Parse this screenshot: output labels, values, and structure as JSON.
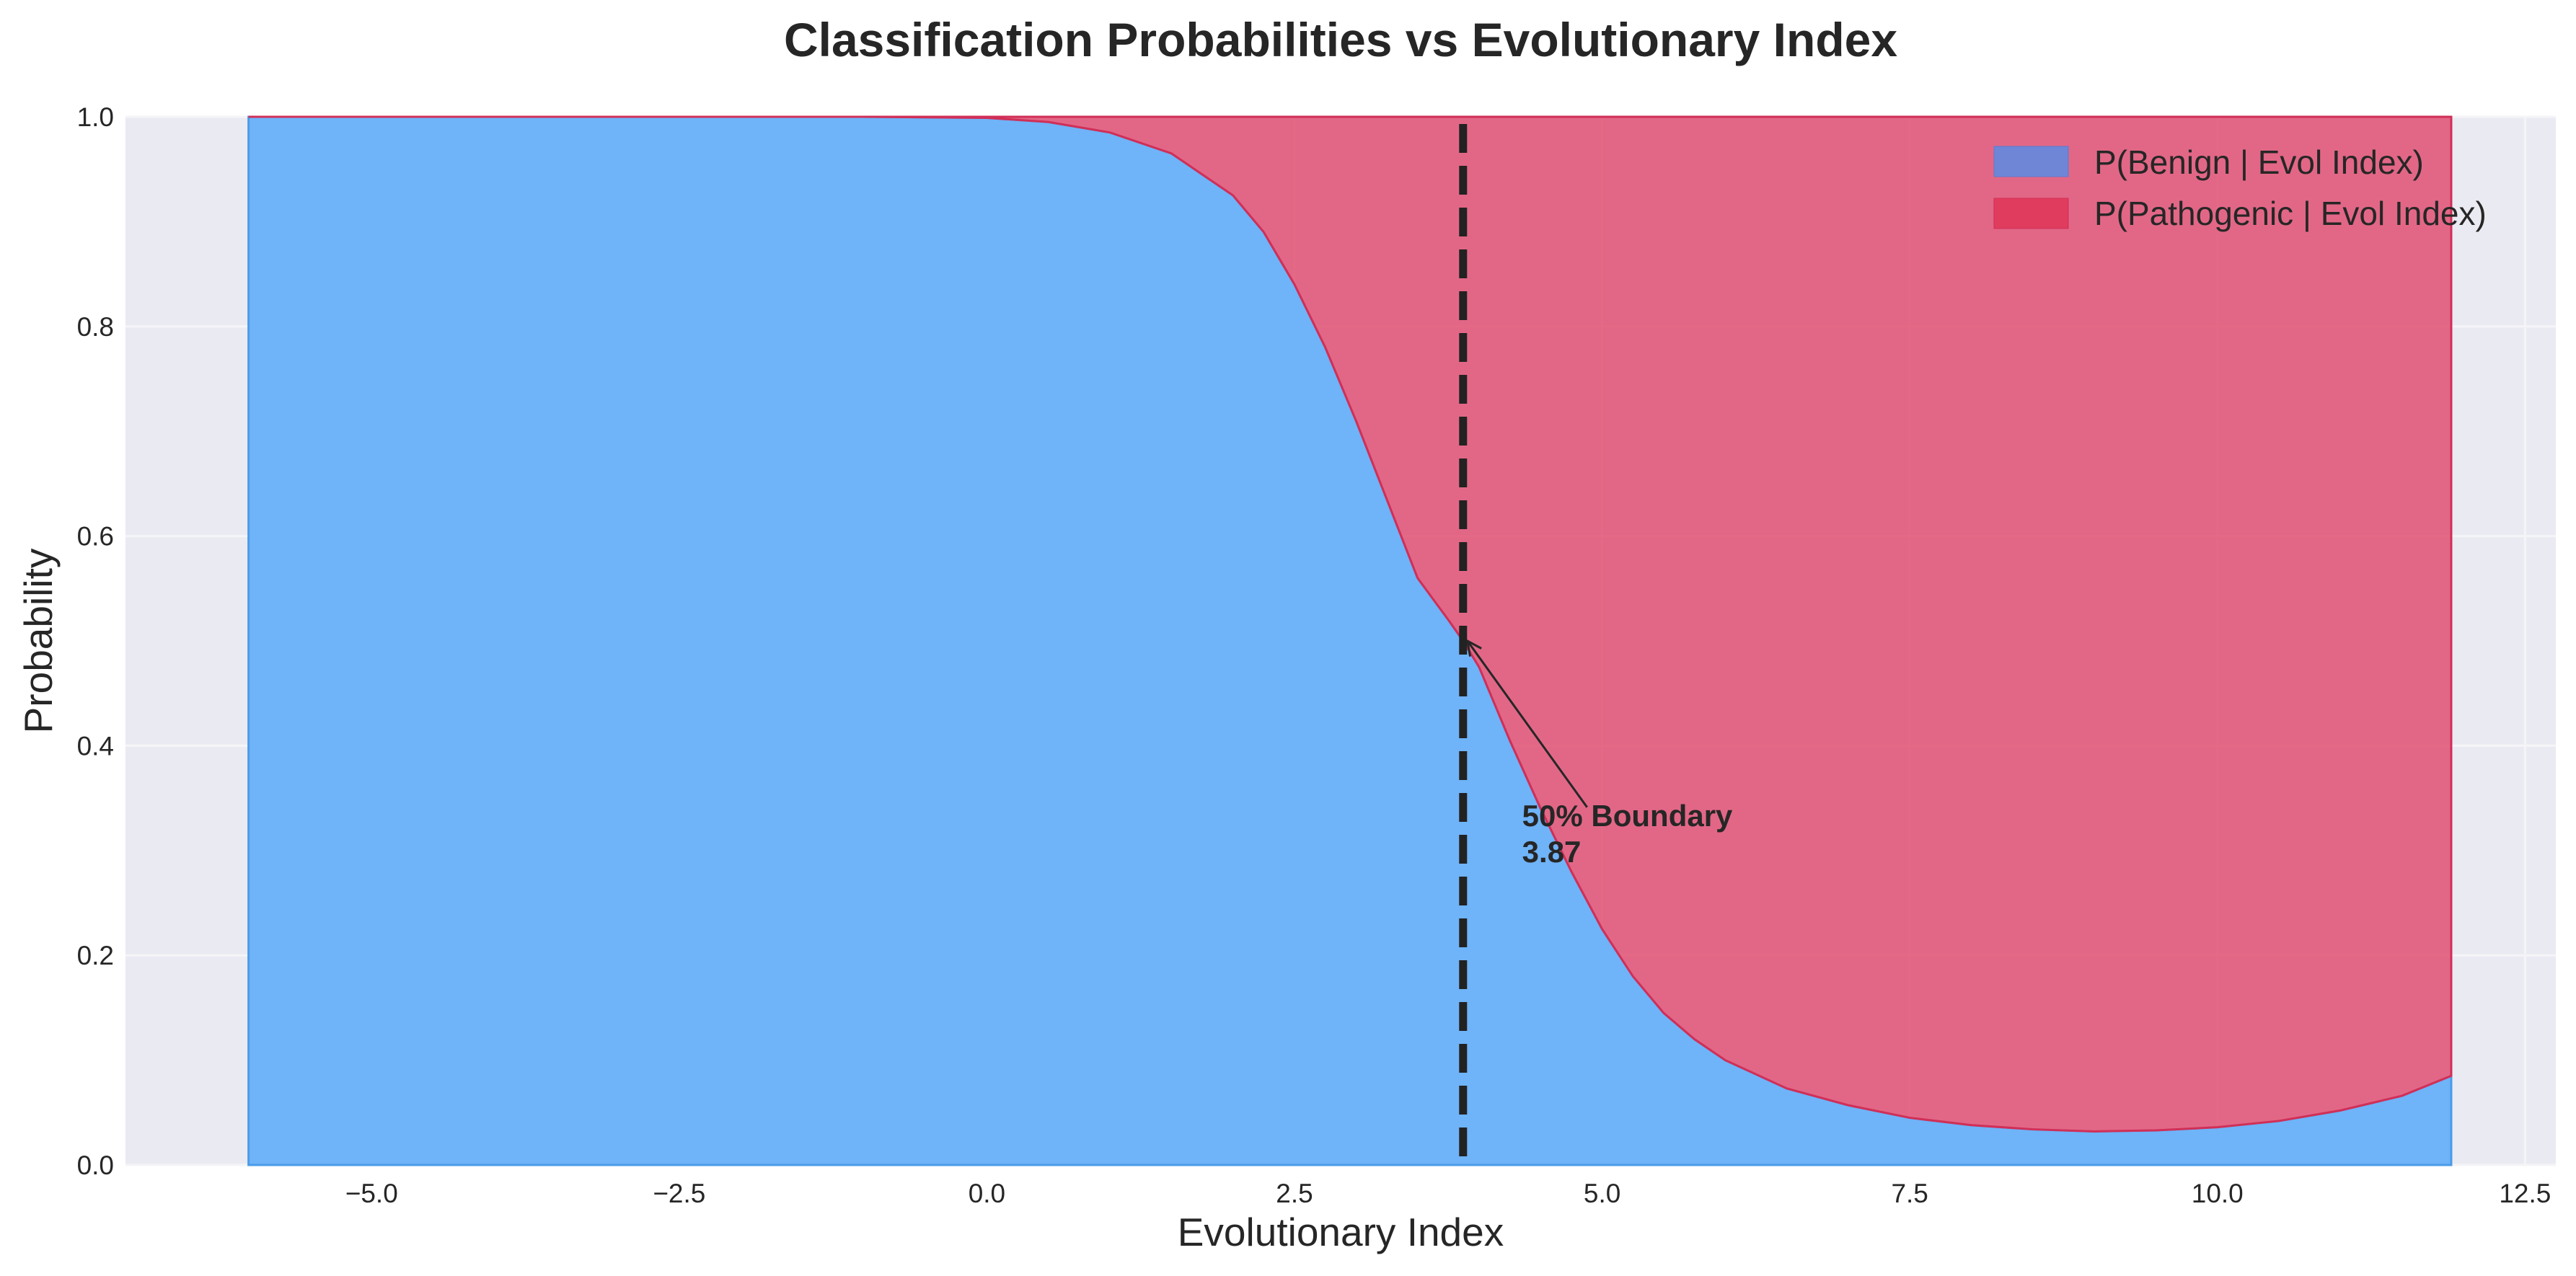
{
  "chart_data": {
    "type": "area",
    "title": "Classification Probabilities vs Evolutionary Index",
    "xlabel": "Evolutionary Index",
    "ylabel": "Probability",
    "xlim": [
      -7,
      12.75
    ],
    "ylim": [
      0,
      1
    ],
    "x_ticks": [
      -5.0,
      -2.5,
      0.0,
      2.5,
      5.0,
      7.5,
      10.0,
      12.5
    ],
    "x_tick_labels": [
      "−5.0",
      "−2.5",
      "0.0",
      "2.5",
      "5.0",
      "7.5",
      "10.0",
      "12.5"
    ],
    "y_ticks": [
      0.0,
      0.2,
      0.4,
      0.6,
      0.8,
      1.0
    ],
    "y_tick_labels": [
      "0.0",
      "0.2",
      "0.4",
      "0.6",
      "0.8",
      "1.0"
    ],
    "grid": true,
    "legend_position": "top-right",
    "x": [
      -6.0,
      -5.0,
      -4.0,
      -3.0,
      -2.0,
      -1.0,
      0.0,
      0.5,
      1.0,
      1.5,
      2.0,
      2.25,
      2.5,
      2.75,
      3.0,
      3.25,
      3.5,
      3.75,
      3.87,
      4.0,
      4.25,
      4.5,
      4.75,
      5.0,
      5.25,
      5.5,
      5.75,
      6.0,
      6.5,
      7.0,
      7.5,
      8.0,
      8.5,
      9.0,
      9.5,
      10.0,
      10.5,
      11.0,
      11.5,
      11.9
    ],
    "series": [
      {
        "name": "P(Benign | Evol Index)",
        "color": "#6fb3f8",
        "values": [
          1.0,
          1.0,
          1.0,
          1.0,
          1.0,
          1.0,
          0.999,
          0.995,
          0.985,
          0.965,
          0.925,
          0.89,
          0.84,
          0.78,
          0.71,
          0.635,
          0.56,
          0.52,
          0.5,
          0.475,
          0.405,
          0.34,
          0.28,
          0.225,
          0.18,
          0.145,
          0.12,
          0.1,
          0.073,
          0.057,
          0.045,
          0.038,
          0.034,
          0.032,
          0.033,
          0.036,
          0.042,
          0.052,
          0.066,
          0.085
        ]
      },
      {
        "name": "P(Pathogenic | Evol Index)",
        "color": "#e0466a",
        "values": [
          0.0,
          0.0,
          0.0,
          0.0,
          0.0,
          0.0,
          0.001,
          0.005,
          0.015,
          0.035,
          0.075,
          0.11,
          0.16,
          0.22,
          0.29,
          0.365,
          0.44,
          0.48,
          0.5,
          0.525,
          0.595,
          0.66,
          0.72,
          0.775,
          0.82,
          0.855,
          0.88,
          0.9,
          0.927,
          0.943,
          0.955,
          0.962,
          0.966,
          0.968,
          0.967,
          0.964,
          0.958,
          0.948,
          0.934,
          0.915
        ]
      }
    ],
    "boundary": {
      "x": 3.87,
      "y": 0.5,
      "label": "50% Boundary",
      "value_label": "3.87",
      "text_x": 4.35,
      "text_y": 0.3
    },
    "colors": {
      "background": "#eaeaf2",
      "grid": "#f5f5f8",
      "benign_legend": "#6f86d6",
      "pathogenic_legend": "#e03c5e",
      "boundary_line": "#222222"
    }
  }
}
